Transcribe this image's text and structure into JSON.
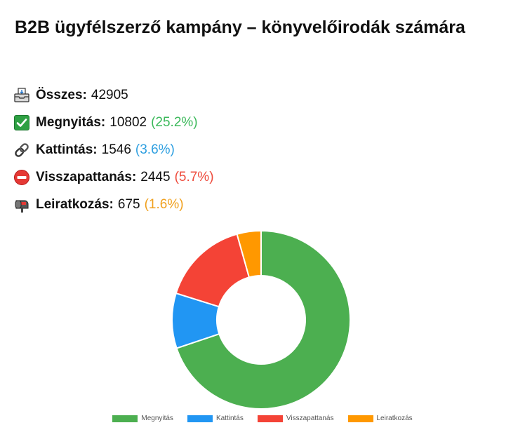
{
  "title": "B2B ügyfélszerző kampány – könyvelőirodák számára",
  "stats": [
    {
      "icon": "inbox-tray-icon",
      "label": "Összes:",
      "value": "42905",
      "pct": "",
      "pct_color": ""
    },
    {
      "icon": "check-mark-icon",
      "label": "Megnyitás:",
      "value": "10802",
      "pct": "(25.2%)",
      "pct_color": "#3cb95b"
    },
    {
      "icon": "link-icon",
      "label": "Kattintás:",
      "value": "1546",
      "pct": "(3.6%)",
      "pct_color": "#2e9fe0"
    },
    {
      "icon": "no-entry-icon",
      "label": "Visszapattanás:",
      "value": "2445",
      "pct": "(5.7%)",
      "pct_color": "#ee4b3c"
    },
    {
      "icon": "mailbox-icon",
      "label": "Leiratkozás:",
      "value": "675",
      "pct": "(1.6%)",
      "pct_color": "#f0a01e"
    }
  ],
  "chart_data": {
    "type": "pie",
    "donut": true,
    "categories": [
      "Megnyitás",
      "Kattintás",
      "Visszapattanás",
      "Leiratkozás"
    ],
    "values": [
      10802,
      1546,
      2445,
      675
    ],
    "colors": [
      "#4caf50",
      "#2196f3",
      "#f44336",
      "#ff9800"
    ],
    "legend_position": "bottom"
  }
}
